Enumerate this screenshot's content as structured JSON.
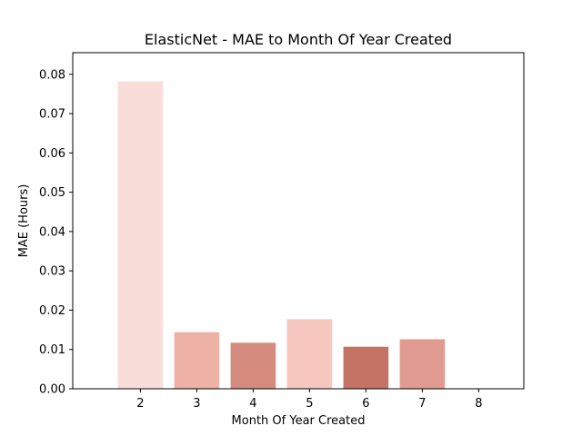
{
  "chart_data": {
    "type": "bar",
    "title": "ElasticNet - MAE to Month Of Year Created",
    "xlabel": "Month Of Year Created",
    "ylabel": "MAE (Hours)",
    "categories": [
      "2",
      "3",
      "4",
      "5",
      "6",
      "7",
      "8"
    ],
    "values": [
      0.0782,
      0.0144,
      0.0117,
      0.0177,
      0.0107,
      0.0126,
      0.0
    ],
    "colors": [
      "#f9ddd8",
      "#eeb1a6",
      "#d48a7c",
      "#f6c7bf",
      "#c57365",
      "#e29b90",
      "#f4c2b8"
    ],
    "xlim": [
      0.8,
      8.8
    ],
    "ylim": [
      0,
      0.0855
    ],
    "y_ticks": [
      0.0,
      0.01,
      0.02,
      0.03,
      0.04,
      0.05,
      0.06,
      0.07,
      0.08
    ],
    "y_tick_labels": [
      "0.00",
      "0.01",
      "0.02",
      "0.03",
      "0.04",
      "0.05",
      "0.06",
      "0.07",
      "0.08"
    ],
    "grid": false,
    "legend": "none"
  }
}
